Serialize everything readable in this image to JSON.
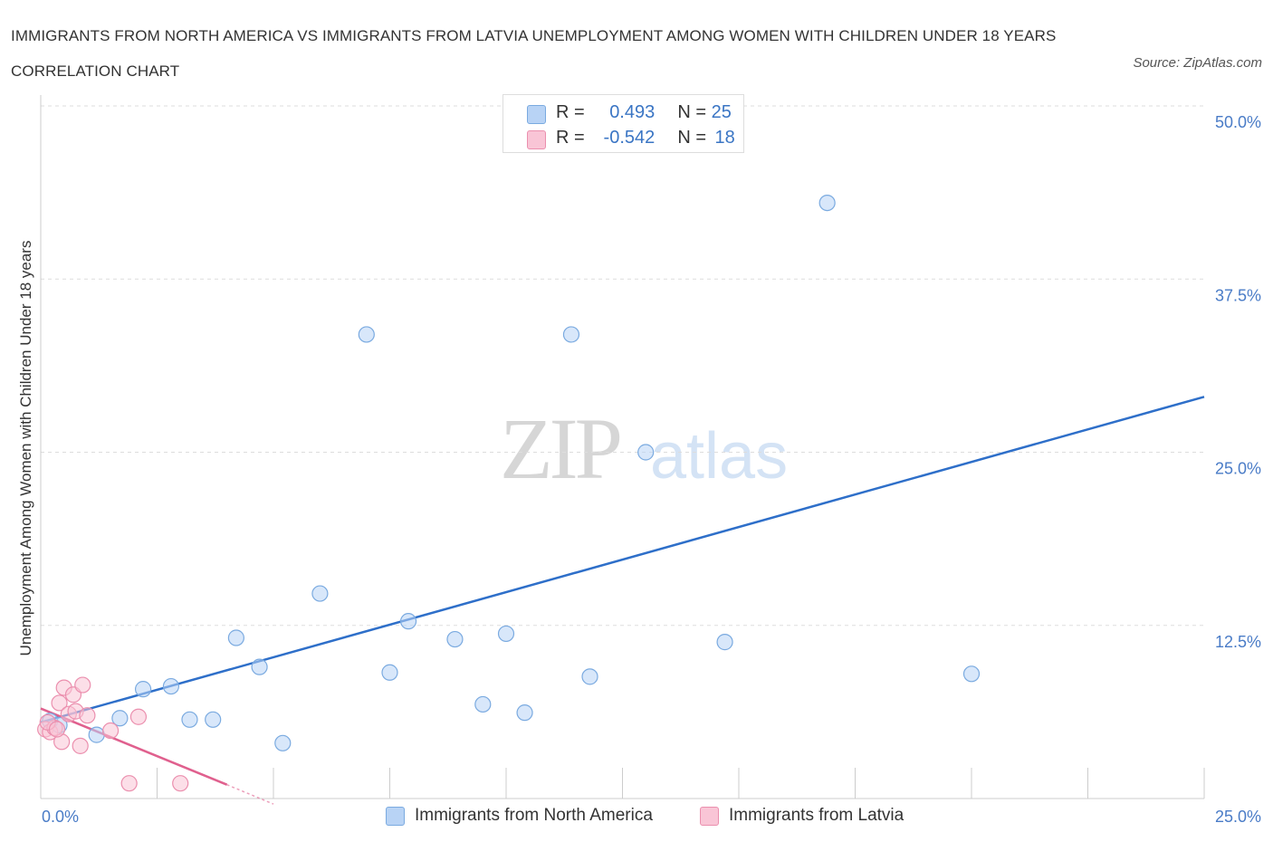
{
  "title": "IMMIGRANTS FROM NORTH AMERICA VS IMMIGRANTS FROM LATVIA UNEMPLOYMENT AMONG WOMEN WITH CHILDREN UNDER 18 YEARS CORRELATION CHART",
  "source": "Source: ZipAtlas.com",
  "watermark": {
    "zip": "ZIP",
    "atlas": "atlas"
  },
  "colors": {
    "blue_fill": "#b8d3f5",
    "blue_stroke": "#7aaae0",
    "blue_line": "#2e6fc9",
    "pink_fill": "#f9c5d6",
    "pink_stroke": "#eb8fae",
    "pink_line": "#e0608e",
    "tick_text": "#4a7cc7",
    "grid": "#dddddd"
  },
  "legend": {
    "rows": [
      {
        "r_label": "R =",
        "r_value": "0.493",
        "n_label": "N =",
        "n_value": "25"
      },
      {
        "r_label": "R =",
        "r_value": "-0.542",
        "n_label": "N =",
        "n_value": "18"
      }
    ]
  },
  "chart_data": {
    "type": "scatter",
    "title": "IMMIGRANTS FROM NORTH AMERICA VS IMMIGRANTS FROM LATVIA UNEMPLOYMENT AMONG WOMEN WITH CHILDREN UNDER 18 YEARS CORRELATION CHART",
    "xlabel": "",
    "ylabel": "Unemployment Among Women with Children Under 18 years",
    "xlim": [
      0,
      25
    ],
    "ylim": [
      0,
      50
    ],
    "x_tick_labels": [
      "0.0%",
      "25.0%"
    ],
    "y_ticks": [
      12.5,
      25.0,
      37.5,
      50.0
    ],
    "y_tick_labels": [
      "12.5%",
      "25.0%",
      "37.5%",
      "50.0%"
    ],
    "grid": true,
    "series": [
      {
        "name": "Immigrants from North America",
        "color": "#b8d3f5",
        "points": [
          [
            0.2,
            5.6
          ],
          [
            0.4,
            5.3
          ],
          [
            1.2,
            4.6
          ],
          [
            1.7,
            5.8
          ],
          [
            2.2,
            7.9
          ],
          [
            2.8,
            8.1
          ],
          [
            3.2,
            5.7
          ],
          [
            3.7,
            5.7
          ],
          [
            4.2,
            11.6
          ],
          [
            4.7,
            9.5
          ],
          [
            5.2,
            4.0
          ],
          [
            6.0,
            14.8
          ],
          [
            7.0,
            33.5
          ],
          [
            7.5,
            9.1
          ],
          [
            7.9,
            12.8
          ],
          [
            8.9,
            11.5
          ],
          [
            9.5,
            6.8
          ],
          [
            10.0,
            11.9
          ],
          [
            10.4,
            6.2
          ],
          [
            11.4,
            33.5
          ],
          [
            11.8,
            8.8
          ],
          [
            13.0,
            25.0
          ],
          [
            14.7,
            11.3
          ],
          [
            16.9,
            43.0
          ],
          [
            20.0,
            9.0
          ]
        ],
        "trend": {
          "x": [
            0.0,
            25.0
          ],
          "y": [
            5.5,
            29.0
          ]
        }
      },
      {
        "name": "Immigrants from Latvia",
        "color": "#f9c5d6",
        "points": [
          [
            0.1,
            5.0
          ],
          [
            0.2,
            4.8
          ],
          [
            0.3,
            5.1
          ],
          [
            0.4,
            6.9
          ],
          [
            0.45,
            4.1
          ],
          [
            0.5,
            8.0
          ],
          [
            0.6,
            6.1
          ],
          [
            0.7,
            7.5
          ],
          [
            0.75,
            6.3
          ],
          [
            0.85,
            3.8
          ],
          [
            0.9,
            8.2
          ],
          [
            1.0,
            6.0
          ],
          [
            1.5,
            4.9
          ],
          [
            1.9,
            1.1
          ],
          [
            2.1,
            5.9
          ],
          [
            3.0,
            1.1
          ],
          [
            0.15,
            5.5
          ],
          [
            0.35,
            5.0
          ]
        ],
        "trend": {
          "x": [
            0.0,
            4.0
          ],
          "y": [
            6.5,
            1.0
          ]
        },
        "trend_extension": {
          "x": [
            4.0,
            5.0
          ],
          "y": [
            1.0,
            -0.4
          ]
        }
      }
    ]
  }
}
